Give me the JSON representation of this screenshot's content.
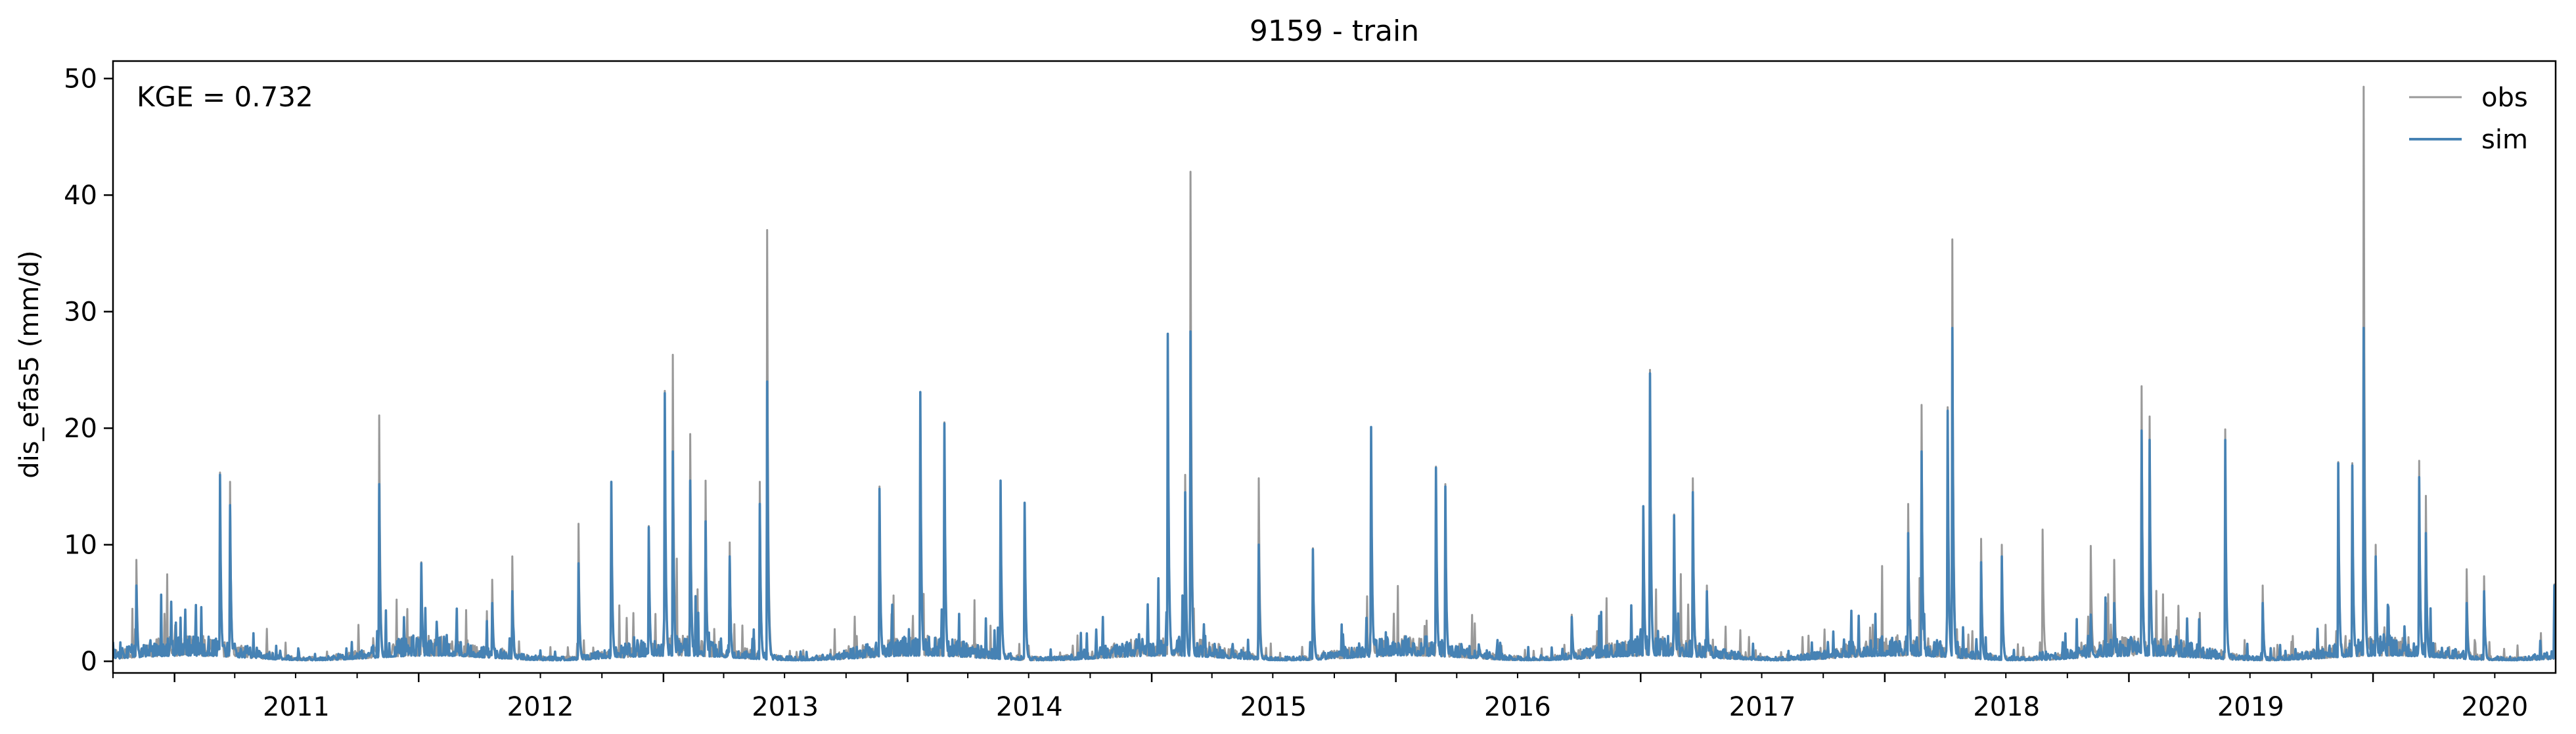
{
  "chart_data": {
    "type": "line",
    "title": "9159 - train",
    "xlabel": "",
    "ylabel": "dis_efas5 (mm/d)",
    "annotation": "KGE = 0.732",
    "xlim": [
      "2010-10-01",
      "2020-09-30"
    ],
    "ylim": [
      -1.0,
      51.5
    ],
    "y_ticks": [
      0,
      10,
      20,
      30,
      40,
      50
    ],
    "x_ticks": [
      {
        "date": "2011-01-01",
        "label": "2011"
      },
      {
        "date": "2012-01-01",
        "label": "2012"
      },
      {
        "date": "2013-01-01",
        "label": "2013"
      },
      {
        "date": "2014-01-01",
        "label": "2014"
      },
      {
        "date": "2015-01-01",
        "label": "2015"
      },
      {
        "date": "2016-01-01",
        "label": "2016"
      },
      {
        "date": "2017-01-01",
        "label": "2017"
      },
      {
        "date": "2018-01-01",
        "label": "2018"
      },
      {
        "date": "2019-01-01",
        "label": "2019"
      },
      {
        "date": "2020-01-01",
        "label": "2020"
      }
    ],
    "grid": false,
    "legend_position": "top-right",
    "series": [
      {
        "name": "obs",
        "color": "#999999",
        "peaks": [
          [
            "2010-11-05",
            8.7
          ],
          [
            "2011-03-10",
            16.2
          ],
          [
            "2011-03-25",
            15.4
          ],
          [
            "2011-11-03",
            21.1
          ],
          [
            "2012-01-05",
            8.5
          ],
          [
            "2012-04-20",
            7.0
          ],
          [
            "2012-05-20",
            9.0
          ],
          [
            "2012-08-27",
            11.8
          ],
          [
            "2012-10-15",
            15.3
          ],
          [
            "2012-12-10",
            11.6
          ],
          [
            "2013-01-03",
            23.2
          ],
          [
            "2013-01-15",
            26.3
          ],
          [
            "2013-02-10",
            19.5
          ],
          [
            "2013-03-05",
            15.5
          ],
          [
            "2013-04-10",
            10.2
          ],
          [
            "2013-05-25",
            15.4
          ],
          [
            "2013-06-05",
            37.0
          ],
          [
            "2013-11-20",
            15.0
          ],
          [
            "2014-01-20",
            23.0
          ],
          [
            "2014-02-25",
            20.5
          ],
          [
            "2014-05-20",
            15.5
          ],
          [
            "2014-06-25",
            13.5
          ],
          [
            "2015-01-25",
            28.0
          ],
          [
            "2015-02-20",
            16.0
          ],
          [
            "2015-02-28",
            42.0
          ],
          [
            "2015-06-10",
            15.7
          ],
          [
            "2015-08-30",
            9.7
          ],
          [
            "2015-11-25",
            20.0
          ],
          [
            "2016-03-01",
            16.7
          ],
          [
            "2016-03-15",
            15.2
          ],
          [
            "2016-09-20",
            4.0
          ],
          [
            "2017-01-05",
            13.0
          ],
          [
            "2017-01-15",
            25.0
          ],
          [
            "2017-02-20",
            12.6
          ],
          [
            "2017-03-20",
            15.7
          ],
          [
            "2017-04-10",
            6.5
          ],
          [
            "2018-02-05",
            13.5
          ],
          [
            "2018-02-25",
            22.0
          ],
          [
            "2018-04-05",
            21.8
          ],
          [
            "2018-04-12",
            36.2
          ],
          [
            "2018-05-25",
            10.5
          ],
          [
            "2018-06-25",
            10.0
          ],
          [
            "2018-08-25",
            11.3
          ],
          [
            "2018-11-05",
            9.9
          ],
          [
            "2018-12-10",
            8.7
          ],
          [
            "2019-01-20",
            23.6
          ],
          [
            "2019-02-01",
            21.0
          ],
          [
            "2019-05-25",
            19.9
          ],
          [
            "2019-07-20",
            6.5
          ],
          [
            "2019-11-10",
            17.1
          ],
          [
            "2019-12-01",
            17.0
          ],
          [
            "2019-12-18",
            49.3
          ],
          [
            "2020-01-05",
            10.0
          ],
          [
            "2020-03-10",
            17.2
          ],
          [
            "2020-03-20",
            14.2
          ],
          [
            "2020-05-20",
            7.9
          ],
          [
            "2020-06-15",
            7.3
          ],
          [
            "2020-09-28",
            6.6
          ]
        ]
      },
      {
        "name": "sim",
        "color": "#4682b4",
        "peaks": [
          [
            "2010-11-05",
            6.5
          ],
          [
            "2011-03-10",
            16.0
          ],
          [
            "2011-03-25",
            13.4
          ],
          [
            "2011-11-03",
            15.2
          ],
          [
            "2012-01-05",
            8.4
          ],
          [
            "2012-04-20",
            5.0
          ],
          [
            "2012-05-20",
            6.0
          ],
          [
            "2012-08-27",
            8.4
          ],
          [
            "2012-10-15",
            15.4
          ],
          [
            "2012-12-10",
            11.5
          ],
          [
            "2013-01-03",
            23.0
          ],
          [
            "2013-01-15",
            18.0
          ],
          [
            "2013-02-10",
            15.5
          ],
          [
            "2013-03-05",
            12.0
          ],
          [
            "2013-04-10",
            9.0
          ],
          [
            "2013-05-25",
            13.5
          ],
          [
            "2013-06-05",
            24.0
          ],
          [
            "2013-11-20",
            14.8
          ],
          [
            "2014-01-20",
            23.1
          ],
          [
            "2014-02-25",
            20.4
          ],
          [
            "2014-05-20",
            15.5
          ],
          [
            "2014-06-25",
            13.6
          ],
          [
            "2015-01-25",
            28.1
          ],
          [
            "2015-02-20",
            14.5
          ],
          [
            "2015-02-28",
            28.3
          ],
          [
            "2015-06-10",
            10.0
          ],
          [
            "2015-08-30",
            9.6
          ],
          [
            "2015-11-25",
            20.1
          ],
          [
            "2016-03-01",
            16.6
          ],
          [
            "2016-03-15",
            15.0
          ],
          [
            "2016-09-20",
            3.8
          ],
          [
            "2017-01-05",
            13.3
          ],
          [
            "2017-01-15",
            24.7
          ],
          [
            "2017-02-20",
            12.5
          ],
          [
            "2017-03-20",
            14.5
          ],
          [
            "2017-04-10",
            6.0
          ],
          [
            "2018-02-05",
            11.0
          ],
          [
            "2018-02-25",
            18.0
          ],
          [
            "2018-04-05",
            21.5
          ],
          [
            "2018-04-12",
            28.6
          ],
          [
            "2018-05-25",
            8.5
          ],
          [
            "2018-06-25",
            9.0
          ],
          [
            "2018-08-25",
            0.8
          ],
          [
            "2018-11-05",
            4.0
          ],
          [
            "2018-12-10",
            5.0
          ],
          [
            "2019-01-20",
            19.8
          ],
          [
            "2019-02-01",
            19.0
          ],
          [
            "2019-05-25",
            19.0
          ],
          [
            "2019-07-20",
            5.0
          ],
          [
            "2019-11-10",
            17.0
          ],
          [
            "2019-12-01",
            16.8
          ],
          [
            "2019-12-18",
            28.6
          ],
          [
            "2020-01-05",
            9.0
          ],
          [
            "2020-03-10",
            15.8
          ],
          [
            "2020-03-20",
            11.0
          ],
          [
            "2020-05-20",
            5.0
          ],
          [
            "2020-06-15",
            6.0
          ],
          [
            "2020-09-28",
            6.5
          ]
        ]
      }
    ]
  }
}
